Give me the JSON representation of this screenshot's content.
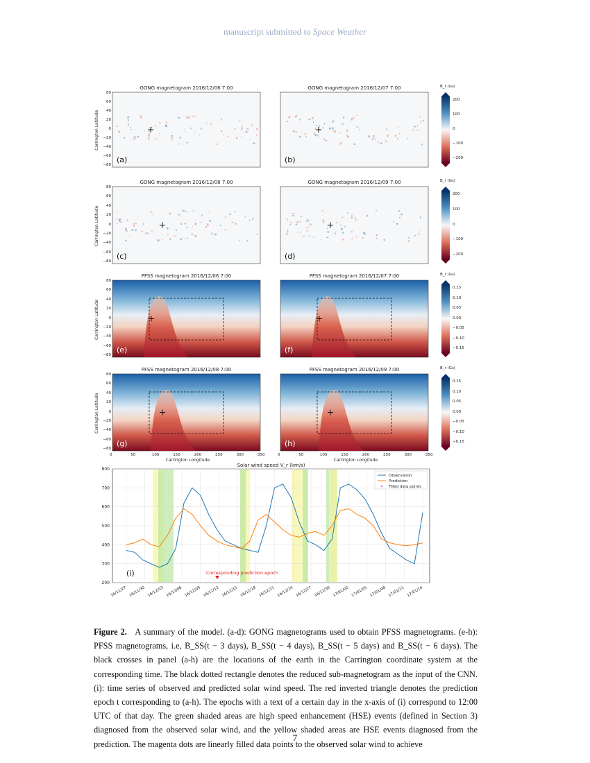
{
  "header": {
    "prefix": "manuscript submitted to ",
    "journal": "Space Weather"
  },
  "panels": {
    "gong": [
      {
        "title": "GONG magnetogram 2016/12/06 7:00",
        "label": "(a)"
      },
      {
        "title": "GONG magnetogram 2016/12/07 7:00",
        "label": "(b)"
      },
      {
        "title": "GONG magnetogram 2016/12/08 7:00",
        "label": "(c)"
      },
      {
        "title": "GONG magnetogram 2016/12/09 7:00",
        "label": "(d)"
      }
    ],
    "pfss": [
      {
        "title": "PFSS magnetogram 2016/12/06 7:00",
        "label": "(e)"
      },
      {
        "title": "PFSS magnetogram 2016/12/07 7:00",
        "label": "(f)"
      },
      {
        "title": "PFSS magnetogram 2016/12/08 7:00",
        "label": "(g)"
      },
      {
        "title": "PFSS magnetogram 2016/12/09 7:00",
        "label": "(h)"
      }
    ],
    "ylabel": "Carrington Latitude",
    "xlabel": "Carrington Longitude",
    "lat_ticks": [
      "80",
      "60",
      "40",
      "20",
      "0",
      "−20",
      "−40",
      "−60",
      "−80"
    ],
    "lon_ticks": [
      "0",
      "50",
      "100",
      "150",
      "200",
      "250",
      "300",
      "350"
    ],
    "colorbar_title": "B_r (Gs)",
    "gong_cbar_ticks": [
      "200",
      "100",
      "0",
      "−100",
      "−200"
    ],
    "pfss_cbar_ticks": [
      "0.15",
      "0.10",
      "0.05",
      "0.00",
      "−0.05",
      "−0.10",
      "−0.15"
    ]
  },
  "chart_data": {
    "type": "line",
    "title": "Solar wind speed V_r (km/s)",
    "panel_label": "(i)",
    "ylim": [
      200,
      800
    ],
    "yticks": [
      "800",
      "700",
      "600",
      "500",
      "400",
      "300",
      "200"
    ],
    "xticks": [
      "16/11/27",
      "16/11/30",
      "16/12/03",
      "16/12/06",
      "16/12/09",
      "16/12/12",
      "16/12/15",
      "16/12/18",
      "16/12/21",
      "16/12/24",
      "16/12/27",
      "16/12/30",
      "17/01/02",
      "17/01/05",
      "17/01/08",
      "17/01/11",
      "17/01/14"
    ],
    "legend": [
      "Observation",
      "Prediction",
      "Filled data points"
    ],
    "annotation": "Corresponding prediction epoch",
    "series": [
      {
        "name": "Observation",
        "color": "#1f77b4",
        "values": [
          370,
          360,
          320,
          300,
          280,
          300,
          380,
          620,
          700,
          660,
          560,
          480,
          420,
          400,
          380,
          370,
          360,
          500,
          700,
          720,
          650,
          520,
          420,
          400,
          370,
          430,
          700,
          720,
          690,
          640,
          560,
          460,
          380,
          350,
          320,
          300,
          570
        ]
      },
      {
        "name": "Prediction",
        "color": "#ff7f0e",
        "values": [
          400,
          410,
          430,
          400,
          390,
          450,
          540,
          590,
          560,
          500,
          450,
          420,
          400,
          390,
          380,
          420,
          530,
          560,
          520,
          480,
          450,
          440,
          460,
          470,
          450,
          500,
          580,
          590,
          560,
          540,
          500,
          430,
          410,
          400,
          395,
          400,
          410
        ]
      }
    ]
  },
  "caption": {
    "lead": "Figure 2.",
    "text": "A summary of the model. (a-d): GONG magnetograms used to obtain PFSS magnetograms. (e-h): PFSS magnetograms, i.e, B_SS(t − 3 days), B_SS(t − 4 days), B_SS(t − 5 days) and B_SS(t − 6 days). The black crosses in panel (a-h) are the locations of the earth in the Carrington coordinate system at the corresponding time. The black dotted rectangle denotes the reduced sub-magnetogram as the input of the CNN. (i): time series of observed and predicted solar wind speed. The red inverted triangle denotes the prediction epoch t corresponding to (a-h). The epochs with a text of a certain day in the x-axis of (i) correspond to 12:00 UTC of that day. The green shaded areas are high speed enhancement (HSE) events (defined in Section 3) diagnosed from the observed solar wind, and the yellow shaded areas are HSE events diagnosed from the prediction. The magenta dots are linearly filled data points to the observed solar wind to achieve"
  },
  "page_number": "7"
}
